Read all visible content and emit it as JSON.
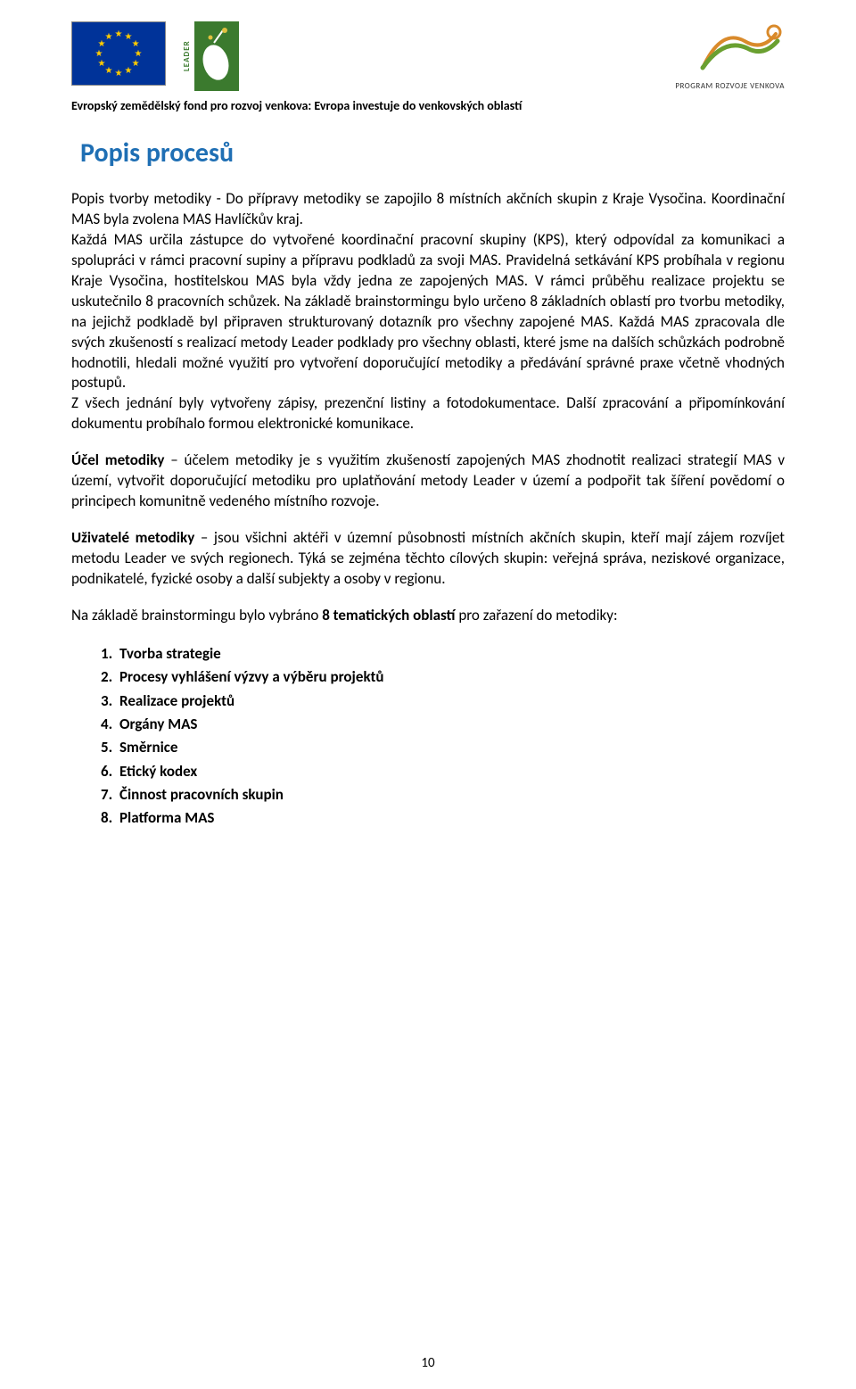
{
  "header": {
    "eu_stars": 12,
    "leader_label": "LEADER",
    "prv_caption": "PROGRAM ROZVOJE VENKOVA",
    "subheader": "Evropský zemědělský fond pro rozvoj venkova: Evropa investuje do venkovských oblastí"
  },
  "title": "Popis procesů",
  "paragraphs": {
    "p1": "Popis tvorby metodiky - Do přípravy metodiky se zapojilo 8 místních akčních skupin z Kraje Vysočina. Koordinační MAS byla zvolena MAS Havlíčkův kraj.",
    "p2": "Každá MAS určila zástupce do vytvořené koordinační pracovní skupiny (KPS), který odpovídal za komunikaci a spolupráci v rámci pracovní supiny a přípravu podkladů za svoji MAS. Pravidelná setkávání KPS probíhala v regionu Kraje Vysočina, hostitelskou MAS byla vždy jedna ze zapojených MAS. V rámci průběhu realizace projektu se uskutečnilo 8 pracovních schůzek. Na základě brainstormingu bylo určeno 8 základních oblastí pro tvorbu metodiky, na jejichž podkladě byl připraven strukturovaný dotazník pro všechny zapojené MAS. Každá MAS zpracovala dle svých zkušeností s realizací metody Leader podklady pro všechny oblasti, které jsme na dalších schůzkách podrobně hodnotili, hledali možné využití pro vytvoření doporučující metodiky a předávání správné praxe včetně vhodných postupů.",
    "p3": "Z všech jednání byly vytvořeny zápisy, prezenční listiny a fotodokumentace. Další zpracování a připomínkování dokumentu probíhalo formou elektronické komunikace.",
    "p4_label": "Účel metodiky",
    "p4_rest": " – účelem metodiky je s využitím zkušeností zapojených MAS zhodnotit realizaci strategií MAS v území, vytvořit doporučující metodiku pro uplatňování metody Leader v území a podpořit tak šíření povědomí o principech komunitně vedeného místního rozvoje.",
    "p5_label": "Uživatelé metodiky",
    "p5_rest": " – jsou všichni aktéři v územní působnosti místních akčních skupin, kteří mají zájem rozvíjet metodu Leader ve svých regionech.  Týká se zejména těchto cílových skupin: veřejná správa, neziskové organizace, podnikatelé, fyzické osoby a další subjekty a osoby v regionu.",
    "p6_pre": "Na základě brainstormingu bylo vybráno ",
    "p6_bold": "8 tematických oblastí",
    "p6_post": " pro zařazení do metodiky:"
  },
  "list": [
    "Tvorba strategie",
    "Procesy vyhlášení výzvy a výběru projektů",
    "Realizace projektů",
    "Orgány MAS",
    "Směrnice",
    "Etický kodex",
    "Činnost pracovních skupin",
    "Platforma MAS"
  ],
  "page_number": "10",
  "colors": {
    "title": "#1f6fb4",
    "eu_blue": "#003399",
    "eu_gold": "#ffcc00",
    "leader_green": "#3b7a2e",
    "prv_orange": "#d98a2b",
    "prv_green": "#6aa030"
  }
}
